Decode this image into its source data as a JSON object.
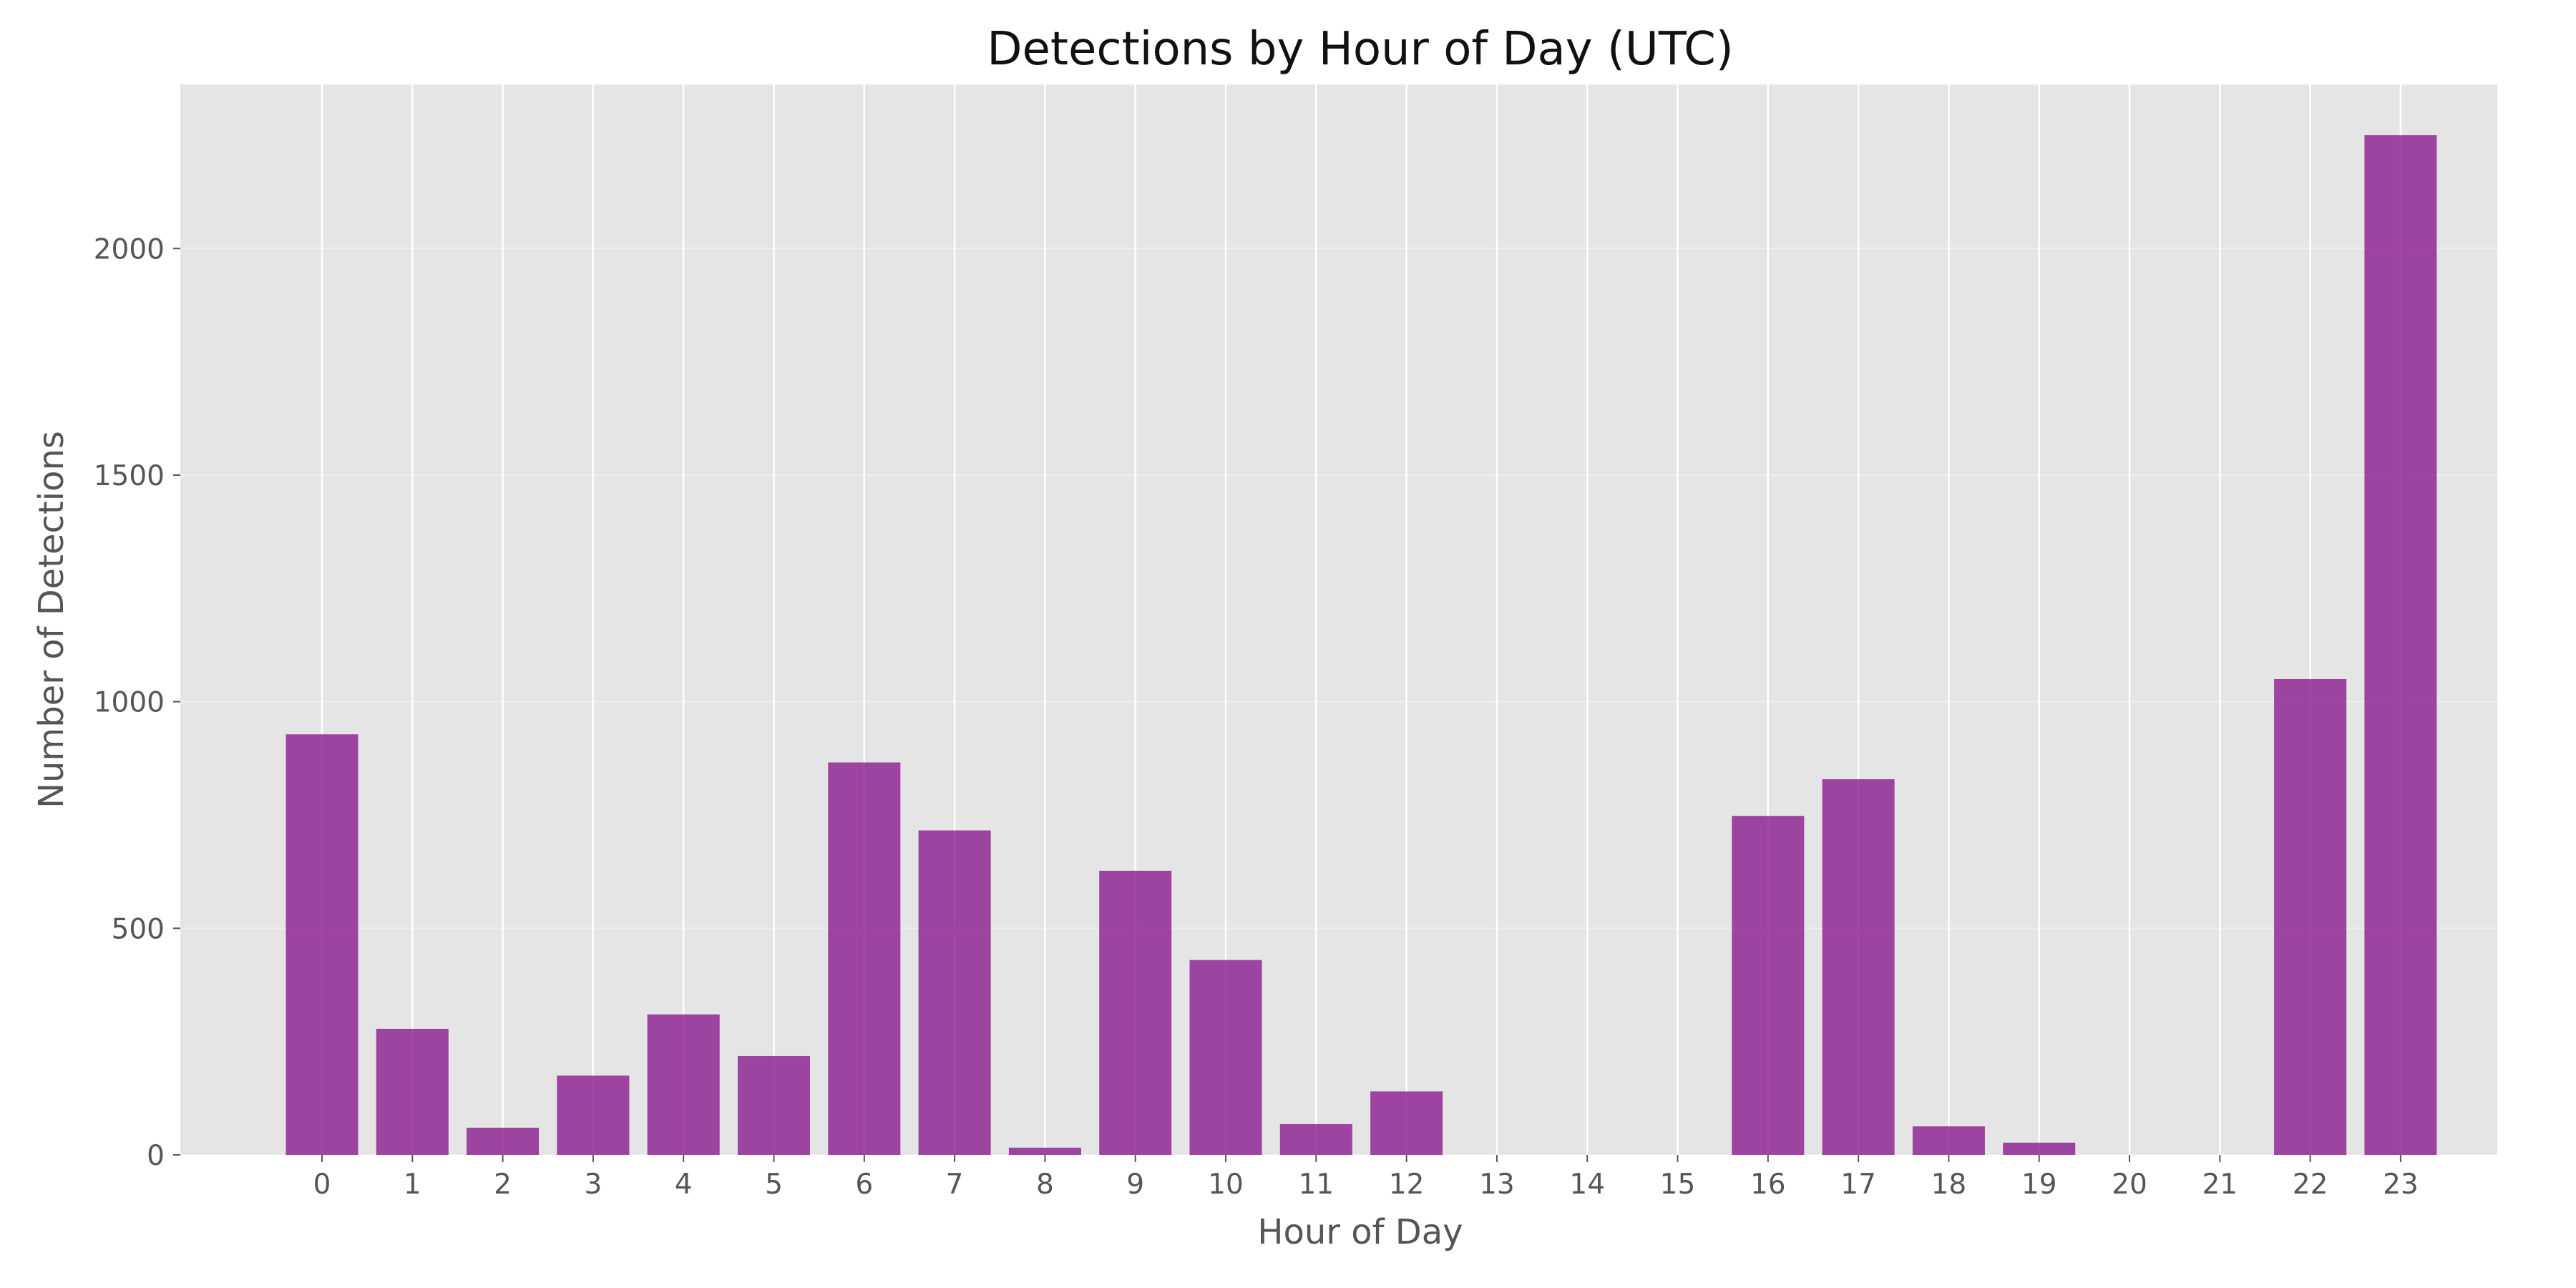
{
  "chart_data": {
    "type": "bar",
    "title": "Detections by Hour of Day (UTC)",
    "xlabel": "Hour of Day",
    "ylabel": "Number of Detections",
    "categories": [
      "0",
      "1",
      "2",
      "3",
      "4",
      "5",
      "6",
      "7",
      "8",
      "9",
      "10",
      "11",
      "12",
      "13",
      "14",
      "15",
      "16",
      "17",
      "18",
      "19",
      "20",
      "21",
      "22",
      "23"
    ],
    "values": [
      928,
      278,
      60,
      175,
      310,
      218,
      866,
      716,
      16,
      627,
      430,
      68,
      140,
      0,
      0,
      0,
      748,
      829,
      63,
      27,
      0,
      0,
      1050,
      2250
    ],
    "ylim": [
      0,
      2362
    ],
    "yticks": [
      0,
      500,
      1000,
      1500,
      2000
    ],
    "grid": true,
    "colors": {
      "bar": "#8B1A8E",
      "plot_background": "#E5E5E5",
      "grid": "#FFFFFF"
    }
  }
}
